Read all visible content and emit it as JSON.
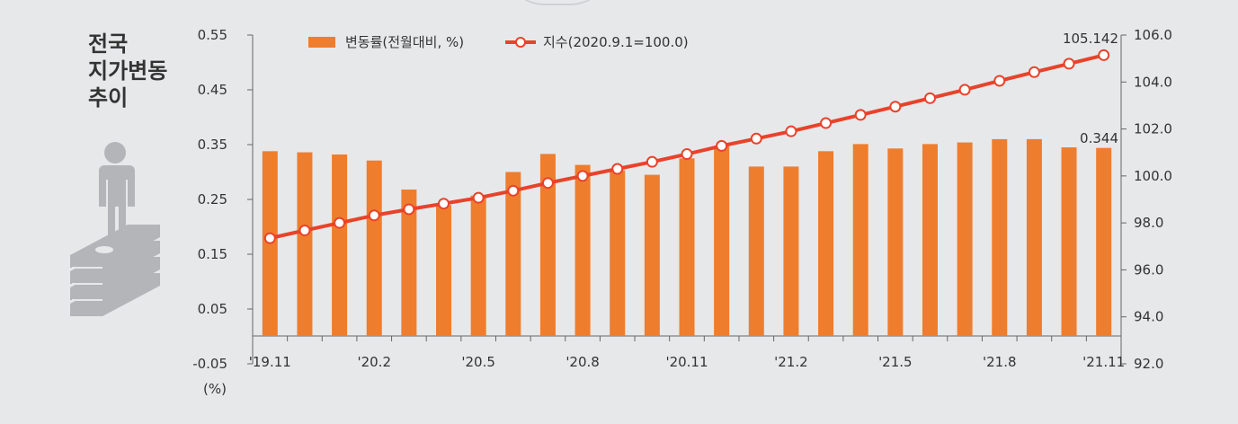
{
  "title": "전국\n지가변동\n추이",
  "unit_label": "(%)",
  "colors": {
    "bar": "#ef7d2e",
    "line": "#e8432a",
    "background": "#e7e8ea",
    "icon": "#b3b5b9"
  },
  "icons": {
    "illustration": "person-on-money-stack-icon"
  },
  "chart_data": {
    "type": "bar-line-combo",
    "categories": [
      "'19.11",
      "'19.12",
      "'20.1",
      "'20.2",
      "'20.3",
      "'20.4",
      "'20.5",
      "'20.6",
      "'20.7",
      "'20.8",
      "'20.9",
      "'20.10",
      "'20.11",
      "'20.12",
      "'21.1",
      "'21.2",
      "'21.3",
      "'21.4",
      "'21.5",
      "'21.6",
      "'21.7",
      "'21.8",
      "'21.9",
      "'21.10",
      "'21.11"
    ],
    "xtick_labels": [
      "'19.11",
      "",
      "",
      "'20.2",
      "",
      "",
      "'20.5",
      "",
      "",
      "'20.8",
      "",
      "",
      "'20.11",
      "",
      "",
      "'21.2",
      "",
      "",
      "'21.5",
      "",
      "",
      "'21.8",
      "",
      "",
      "'21.11"
    ],
    "series": [
      {
        "name": "변동률(전월대비, %)",
        "type": "bar",
        "axis": "left",
        "values": [
          0.338,
          0.336,
          0.332,
          0.321,
          0.268,
          0.24,
          0.257,
          0.3,
          0.333,
          0.313,
          0.303,
          0.295,
          0.325,
          0.347,
          0.31,
          0.31,
          0.338,
          0.351,
          0.343,
          0.351,
          0.354,
          0.36,
          0.36,
          0.345,
          0.344
        ]
      },
      {
        "name": "지수(2020.9.1=100.0)",
        "type": "line",
        "axis": "right",
        "values": [
          97.35,
          97.68,
          98.0,
          98.32,
          98.58,
          98.82,
          99.07,
          99.37,
          99.7,
          100.0,
          100.3,
          100.6,
          100.93,
          101.28,
          101.59,
          101.9,
          102.25,
          102.6,
          102.95,
          103.31,
          103.67,
          104.05,
          104.42,
          104.78,
          105.142
        ]
      }
    ],
    "yleft": {
      "min": -0.05,
      "max": 0.55,
      "ticks": [
        0.55,
        0.45,
        0.35,
        0.25,
        0.15,
        0.05,
        -0.05
      ],
      "labels": [
        "0.55",
        "0.45",
        "0.35",
        "0.25",
        "0.15",
        "0.05",
        "-0.05"
      ]
    },
    "yright": {
      "min": 92.0,
      "max": 106.0,
      "ticks": [
        106,
        104,
        102,
        100,
        98,
        96,
        94,
        92
      ],
      "labels": [
        "106.0",
        "104.0",
        "102.0",
        "100.0",
        "98.0",
        "96.0",
        "94.0",
        "92.0"
      ]
    },
    "annotations": {
      "last_line_value": "105.142",
      "last_bar_value": "0.344"
    },
    "legend_position": "top"
  }
}
